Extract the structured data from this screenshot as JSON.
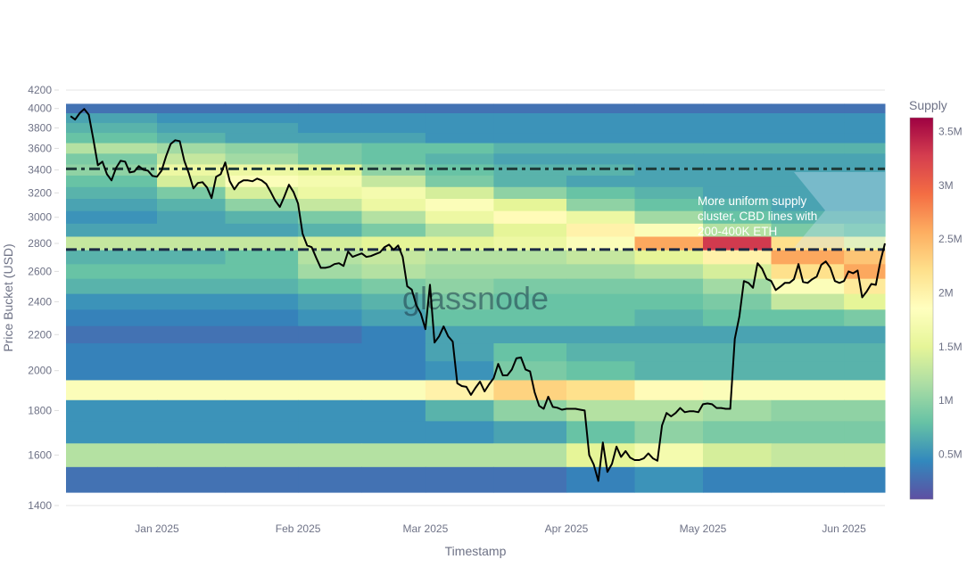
{
  "chart_data": {
    "type": "heatmap",
    "title": "",
    "xlabel": "Timestamp",
    "ylabel": "Price Bucket (USD)",
    "y_scale": "log",
    "ylim": [
      1400,
      4200
    ],
    "xlim": [
      "2024-12-12",
      "2025-06-10"
    ],
    "grid": true,
    "y_ticks": [
      "1400",
      "1600",
      "1800",
      "2000",
      "2200",
      "2400",
      "2600",
      "2800",
      "3000",
      "3200",
      "3400",
      "3600",
      "3800",
      "4000",
      "4200"
    ],
    "x_ticks": [
      {
        "date": "2025-01-01",
        "label": "Jan 2025"
      },
      {
        "date": "2025-02-01",
        "label": "Feb 2025"
      },
      {
        "date": "2025-03-01",
        "label": "Mar 2025"
      },
      {
        "date": "2025-04-01",
        "label": "Apr 2025"
      },
      {
        "date": "2025-05-01",
        "label": "May 2025"
      },
      {
        "date": "2025-06-01",
        "label": "Jun 2025"
      }
    ],
    "colorbar": {
      "title": "Supply",
      "range": [
        0.08,
        3.63
      ],
      "tick_values": [
        0.5,
        1,
        1.5,
        2,
        2.5,
        3,
        3.5
      ],
      "tick_labels": [
        "0.5M",
        "1M",
        "1.5M",
        "2M",
        "2.5M",
        "3M",
        "3.5M"
      ],
      "colorscale": [
        "#5e4fa2",
        "#3288bd",
        "#66c2a5",
        "#abdda4",
        "#e6f598",
        "#ffffbf",
        "#fee08b",
        "#fdae61",
        "#f46d43",
        "#d53e4f",
        "#9e0142"
      ]
    },
    "heatmap": {
      "unit": "M ETH",
      "period_edges": [
        "2024-12-12",
        "2025-01-01",
        "2025-01-16",
        "2025-02-01",
        "2025-02-15",
        "2025-03-01",
        "2025-03-16",
        "2025-04-01",
        "2025-04-16",
        "2025-05-01",
        "2025-05-16",
        "2025-06-01",
        "2025-06-10"
      ],
      "bucket_size": 100,
      "buckets": [
        4000,
        3900,
        3800,
        3700,
        3600,
        3500,
        3400,
        3300,
        3200,
        3100,
        3000,
        2900,
        2800,
        2700,
        2600,
        2500,
        2400,
        2300,
        2200,
        2100,
        2000,
        1900,
        1800,
        1700,
        1600,
        1500
      ],
      "supply": [
        [
          0.3,
          0.3,
          0.3,
          0.3,
          0.3,
          0.3,
          0.3,
          0.3,
          0.3,
          0.3,
          0.3,
          0.3
        ],
        [
          0.6,
          0.5,
          0.5,
          0.5,
          0.5,
          0.5,
          0.5,
          0.5,
          0.5,
          0.5,
          0.5,
          0.5
        ],
        [
          0.7,
          0.6,
          0.6,
          0.5,
          0.5,
          0.5,
          0.5,
          0.5,
          0.5,
          0.5,
          0.5,
          0.5
        ],
        [
          0.8,
          0.7,
          0.6,
          0.6,
          0.6,
          0.5,
          0.5,
          0.5,
          0.5,
          0.5,
          0.5,
          0.5
        ],
        [
          1.2,
          1.1,
          1.0,
          0.9,
          0.8,
          0.8,
          0.7,
          0.7,
          0.7,
          0.7,
          0.7,
          0.7
        ],
        [
          0.9,
          1.3,
          1.1,
          0.9,
          0.8,
          0.7,
          0.6,
          0.6,
          0.6,
          0.6,
          0.6,
          0.6
        ],
        [
          1.0,
          1.6,
          1.6,
          1.5,
          1.0,
          0.8,
          0.7,
          0.7,
          0.6,
          0.6,
          0.6,
          0.6
        ],
        [
          0.8,
          1.4,
          1.8,
          1.7,
          1.3,
          0.9,
          0.7,
          0.6,
          0.6,
          0.6,
          0.6,
          0.6
        ],
        [
          0.7,
          0.9,
          1.4,
          1.6,
          1.7,
          1.4,
          1.0,
          0.8,
          0.7,
          0.6,
          0.6,
          0.6
        ],
        [
          0.6,
          0.7,
          1.0,
          1.3,
          1.6,
          1.8,
          1.5,
          1.0,
          0.8,
          0.7,
          0.6,
          0.6
        ],
        [
          0.5,
          0.6,
          0.7,
          0.9,
          1.2,
          1.6,
          1.9,
          1.6,
          1.1,
          0.8,
          0.7,
          0.7
        ],
        [
          0.6,
          0.6,
          0.6,
          0.7,
          0.9,
          1.2,
          1.5,
          2.0,
          1.8,
          1.2,
          0.9,
          0.8
        ],
        [
          1.3,
          1.3,
          1.3,
          1.4,
          1.5,
          1.5,
          1.6,
          1.8,
          2.6,
          3.3,
          2.2,
          1.6
        ],
        [
          0.7,
          0.7,
          0.8,
          1.2,
          1.3,
          1.2,
          1.2,
          1.3,
          1.5,
          2.0,
          2.6,
          2.4
        ],
        [
          0.8,
          0.8,
          0.8,
          1.1,
          1.2,
          1.1,
          1.1,
          1.1,
          1.2,
          1.4,
          2.2,
          2.6
        ],
        [
          0.7,
          0.7,
          0.7,
          0.8,
          0.9,
          1.0,
          0.9,
          0.9,
          0.9,
          1.1,
          1.8,
          2.1
        ],
        [
          0.5,
          0.5,
          0.5,
          0.6,
          0.7,
          0.9,
          0.8,
          0.8,
          0.8,
          0.9,
          1.3,
          1.5
        ],
        [
          0.4,
          0.4,
          0.4,
          0.5,
          0.6,
          0.8,
          0.8,
          0.8,
          0.7,
          0.8,
          0.8,
          0.9
        ],
        [
          0.3,
          0.3,
          0.3,
          0.3,
          0.4,
          0.6,
          0.6,
          0.6,
          0.6,
          0.6,
          0.6,
          0.6
        ],
        [
          0.4,
          0.4,
          0.4,
          0.4,
          0.4,
          0.6,
          0.8,
          0.7,
          0.7,
          0.7,
          0.7,
          0.7
        ],
        [
          0.4,
          0.4,
          0.4,
          0.4,
          0.4,
          0.5,
          0.9,
          0.8,
          0.7,
          0.7,
          0.7,
          0.7
        ],
        [
          1.8,
          1.8,
          1.8,
          1.8,
          1.8,
          2.0,
          2.3,
          2.2,
          1.9,
          1.8,
          1.8,
          1.8
        ],
        [
          0.5,
          0.5,
          0.5,
          0.5,
          0.5,
          0.7,
          1.0,
          1.2,
          1.2,
          1.1,
          1.0,
          1.0
        ],
        [
          0.5,
          0.5,
          0.5,
          0.5,
          0.5,
          0.5,
          0.6,
          0.8,
          1.0,
          0.9,
          0.9,
          0.9
        ],
        [
          1.2,
          1.2,
          1.2,
          1.2,
          1.2,
          1.2,
          1.2,
          1.5,
          1.7,
          1.4,
          1.3,
          1.3
        ],
        [
          0.3,
          0.3,
          0.3,
          0.3,
          0.3,
          0.3,
          0.3,
          0.4,
          0.5,
          0.4,
          0.4,
          0.4
        ]
      ]
    },
    "price_line": {
      "color": "#000000",
      "dates": [
        "2024-12-13",
        "2024-12-14",
        "2024-12-15",
        "2024-12-16",
        "2024-12-17",
        "2024-12-18",
        "2024-12-19",
        "2024-12-20",
        "2024-12-21",
        "2024-12-22",
        "2024-12-23",
        "2024-12-24",
        "2024-12-25",
        "2024-12-26",
        "2024-12-27",
        "2024-12-28",
        "2024-12-29",
        "2024-12-30",
        "2024-12-31",
        "2025-01-01",
        "2025-01-02",
        "2025-01-03",
        "2025-01-04",
        "2025-01-05",
        "2025-01-06",
        "2025-01-07",
        "2025-01-08",
        "2025-01-09",
        "2025-01-10",
        "2025-01-11",
        "2025-01-12",
        "2025-01-13",
        "2025-01-14",
        "2025-01-15",
        "2025-01-16",
        "2025-01-17",
        "2025-01-18",
        "2025-01-19",
        "2025-01-20",
        "2025-01-21",
        "2025-01-22",
        "2025-01-23",
        "2025-01-24",
        "2025-01-25",
        "2025-01-26",
        "2025-01-27",
        "2025-01-28",
        "2025-01-29",
        "2025-01-30",
        "2025-01-31",
        "2025-02-01",
        "2025-02-02",
        "2025-02-03",
        "2025-02-04",
        "2025-02-05",
        "2025-02-06",
        "2025-02-07",
        "2025-02-08",
        "2025-02-09",
        "2025-02-10",
        "2025-02-11",
        "2025-02-12",
        "2025-02-13",
        "2025-02-14",
        "2025-02-15",
        "2025-02-16",
        "2025-02-17",
        "2025-02-18",
        "2025-02-19",
        "2025-02-20",
        "2025-02-21",
        "2025-02-22",
        "2025-02-23",
        "2025-02-24",
        "2025-02-25",
        "2025-02-26",
        "2025-02-27",
        "2025-02-28",
        "2025-03-01",
        "2025-03-02",
        "2025-03-03",
        "2025-03-04",
        "2025-03-05",
        "2025-03-06",
        "2025-03-07",
        "2025-03-08",
        "2025-03-09",
        "2025-03-10",
        "2025-03-11",
        "2025-03-12",
        "2025-03-13",
        "2025-03-14",
        "2025-03-15",
        "2025-03-16",
        "2025-03-17",
        "2025-03-18",
        "2025-03-19",
        "2025-03-20",
        "2025-03-21",
        "2025-03-22",
        "2025-03-23",
        "2025-03-24",
        "2025-03-25",
        "2025-03-26",
        "2025-03-27",
        "2025-03-28",
        "2025-03-29",
        "2025-03-30",
        "2025-03-31",
        "2025-04-01",
        "2025-04-02",
        "2025-04-03",
        "2025-04-04",
        "2025-04-05",
        "2025-04-06",
        "2025-04-07",
        "2025-04-08",
        "2025-04-09",
        "2025-04-10",
        "2025-04-11",
        "2025-04-12",
        "2025-04-13",
        "2025-04-14",
        "2025-04-15",
        "2025-04-16",
        "2025-04-17",
        "2025-04-18",
        "2025-04-19",
        "2025-04-20",
        "2025-04-21",
        "2025-04-22",
        "2025-04-23",
        "2025-04-24",
        "2025-04-25",
        "2025-04-26",
        "2025-04-27",
        "2025-04-28",
        "2025-04-29",
        "2025-04-30",
        "2025-05-01",
        "2025-05-02",
        "2025-05-03",
        "2025-05-04",
        "2025-05-05",
        "2025-05-06",
        "2025-05-07",
        "2025-05-08",
        "2025-05-09",
        "2025-05-10",
        "2025-05-11",
        "2025-05-12",
        "2025-05-13",
        "2025-05-14",
        "2025-05-15",
        "2025-05-16",
        "2025-05-17",
        "2025-05-18",
        "2025-05-19",
        "2025-05-20",
        "2025-05-21",
        "2025-05-22",
        "2025-05-23",
        "2025-05-24",
        "2025-05-25",
        "2025-05-26",
        "2025-05-27",
        "2025-05-28",
        "2025-05-29",
        "2025-05-30",
        "2025-05-31",
        "2025-06-01",
        "2025-06-02",
        "2025-06-03",
        "2025-06-04",
        "2025-06-05",
        "2025-06-06",
        "2025-06-07",
        "2025-06-08",
        "2025-06-09",
        "2025-06-10"
      ],
      "values": [
        3920,
        3885,
        3950,
        3995,
        3935,
        3690,
        3443,
        3476,
        3362,
        3308,
        3418,
        3484,
        3476,
        3378,
        3386,
        3435,
        3402,
        3394,
        3347,
        3340,
        3394,
        3526,
        3642,
        3678,
        3669,
        3484,
        3370,
        3238,
        3285,
        3292,
        3246,
        3156,
        3340,
        3362,
        3468,
        3300,
        3230,
        3285,
        3308,
        3308,
        3300,
        3323,
        3308,
        3277,
        3208,
        3134,
        3083,
        3170,
        3270,
        3208,
        3112,
        2873,
        2785,
        2772,
        2695,
        2625,
        2625,
        2632,
        2651,
        2657,
        2638,
        2740,
        2702,
        2715,
        2727,
        2702,
        2708,
        2721,
        2734,
        2772,
        2791,
        2753,
        2785,
        2702,
        2500,
        2478,
        2378,
        2325,
        2232,
        2510,
        2154,
        2190,
        2248,
        2190,
        2160,
        1934,
        1920,
        1916,
        1876,
        1911,
        1943,
        1893,
        1929,
        1961,
        2036,
        1975,
        1975,
        2006,
        2066,
        2071,
        2006,
        1996,
        1889,
        1822,
        1808,
        1867,
        1817,
        1813,
        1804,
        1808,
        1808,
        1808,
        1804,
        1800,
        1600,
        1560,
        1494,
        1654,
        1530,
        1563,
        1636,
        1592,
        1617,
        1589,
        1579,
        1579,
        1586,
        1607,
        1586,
        1576,
        1730,
        1788,
        1772,
        1788,
        1812,
        1792,
        1796,
        1796,
        1792,
        1830,
        1834,
        1830,
        1812,
        1812,
        1808,
        1808,
        2175,
        2307,
        2535,
        2522,
        2490,
        2657,
        2619,
        2549,
        2535,
        2475,
        2497,
        2522,
        2522,
        2547,
        2651,
        2528,
        2522,
        2547,
        2564,
        2645,
        2670,
        2625,
        2535,
        2522,
        2535,
        2600,
        2587,
        2606,
        2428,
        2466,
        2515,
        2509,
        2670,
        2800
      ]
    },
    "reference_lines": [
      {
        "value": 3410,
        "color": "#1f3b3a",
        "style": "dashdot"
      },
      {
        "value": 2755,
        "color": "#1c2b45",
        "style": "dashdot"
      }
    ],
    "annotation": "More uniform supply cluster, CBD lines with 200-400K ETH",
    "annotation_lines": [
      "More uniform supply",
      "cluster, CBD lines with",
      "200-400K ETH"
    ],
    "watermark": "glassnode"
  }
}
